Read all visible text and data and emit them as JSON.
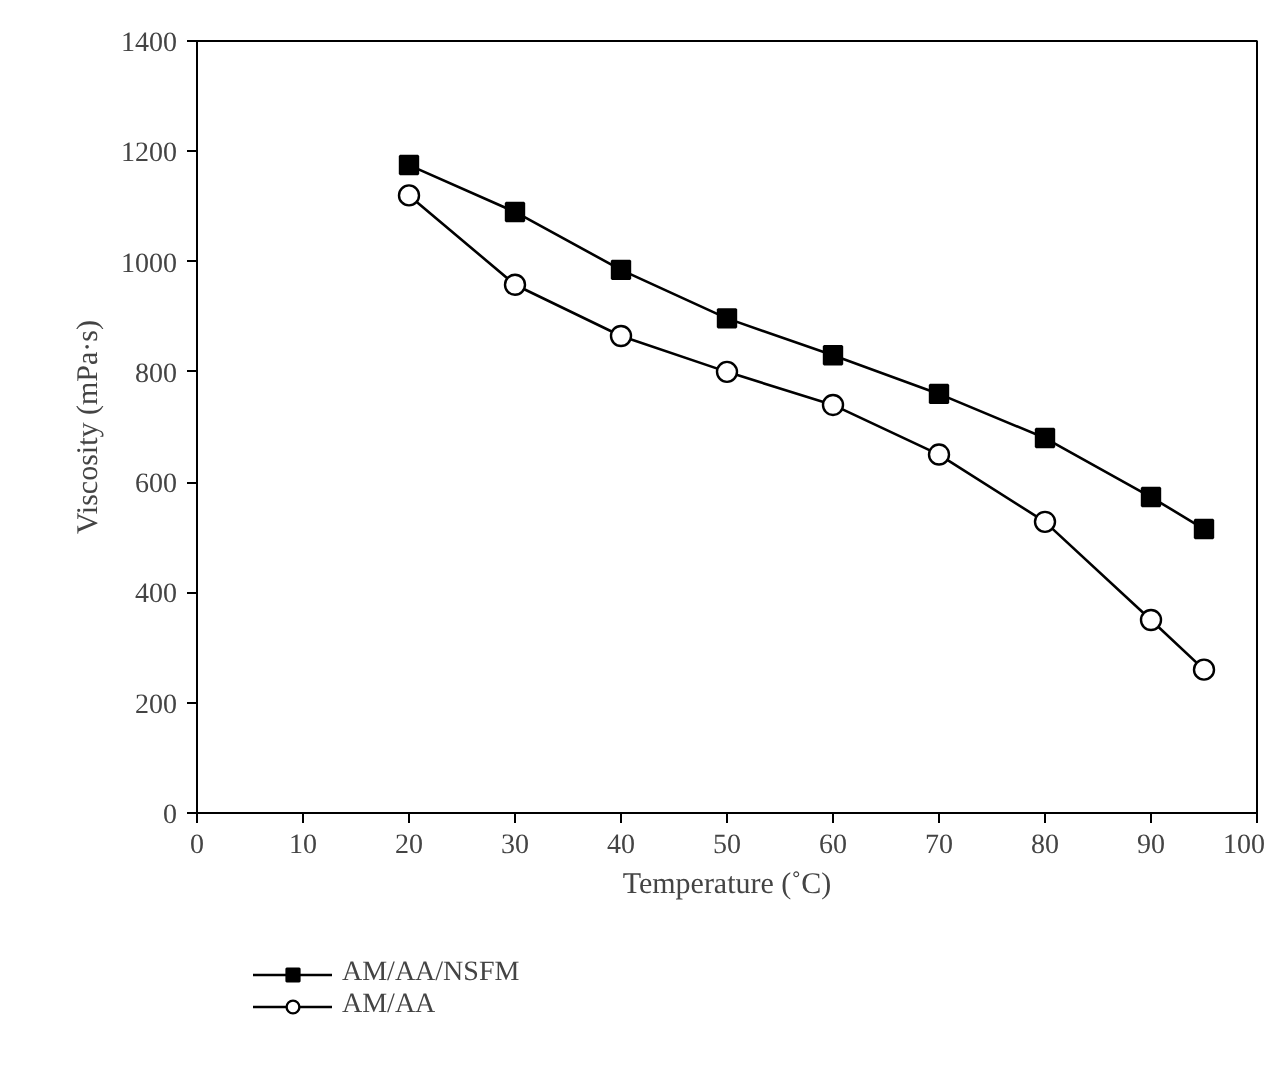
{
  "chart_data": {
    "type": "line",
    "xlabel": "Temperature (˚C)",
    "ylabel": "Viscosity (mPa·s)",
    "x": [
      20,
      30,
      40,
      50,
      60,
      70,
      80,
      90,
      95
    ],
    "series": [
      {
        "name": "AM/AA/NSFM",
        "color": "#000000",
        "marker": "square",
        "values": [
          1175,
          1090,
          985,
          897,
          830,
          760,
          680,
          573,
          515
        ]
      },
      {
        "name": "AM/AA",
        "color": "#000000",
        "marker": "circle",
        "values": [
          1120,
          958,
          865,
          800,
          740,
          650,
          528,
          350,
          260
        ]
      }
    ],
    "xlim": [
      0,
      100
    ],
    "xticks": [
      0,
      10,
      20,
      30,
      40,
      50,
      60,
      70,
      80,
      90,
      100
    ],
    "ylim": [
      0,
      1400
    ],
    "yticks": [
      0,
      200,
      400,
      600,
      800,
      1000,
      1200,
      1400
    ],
    "grid": false,
    "legend": "bottom",
    "line_style": "solid"
  }
}
